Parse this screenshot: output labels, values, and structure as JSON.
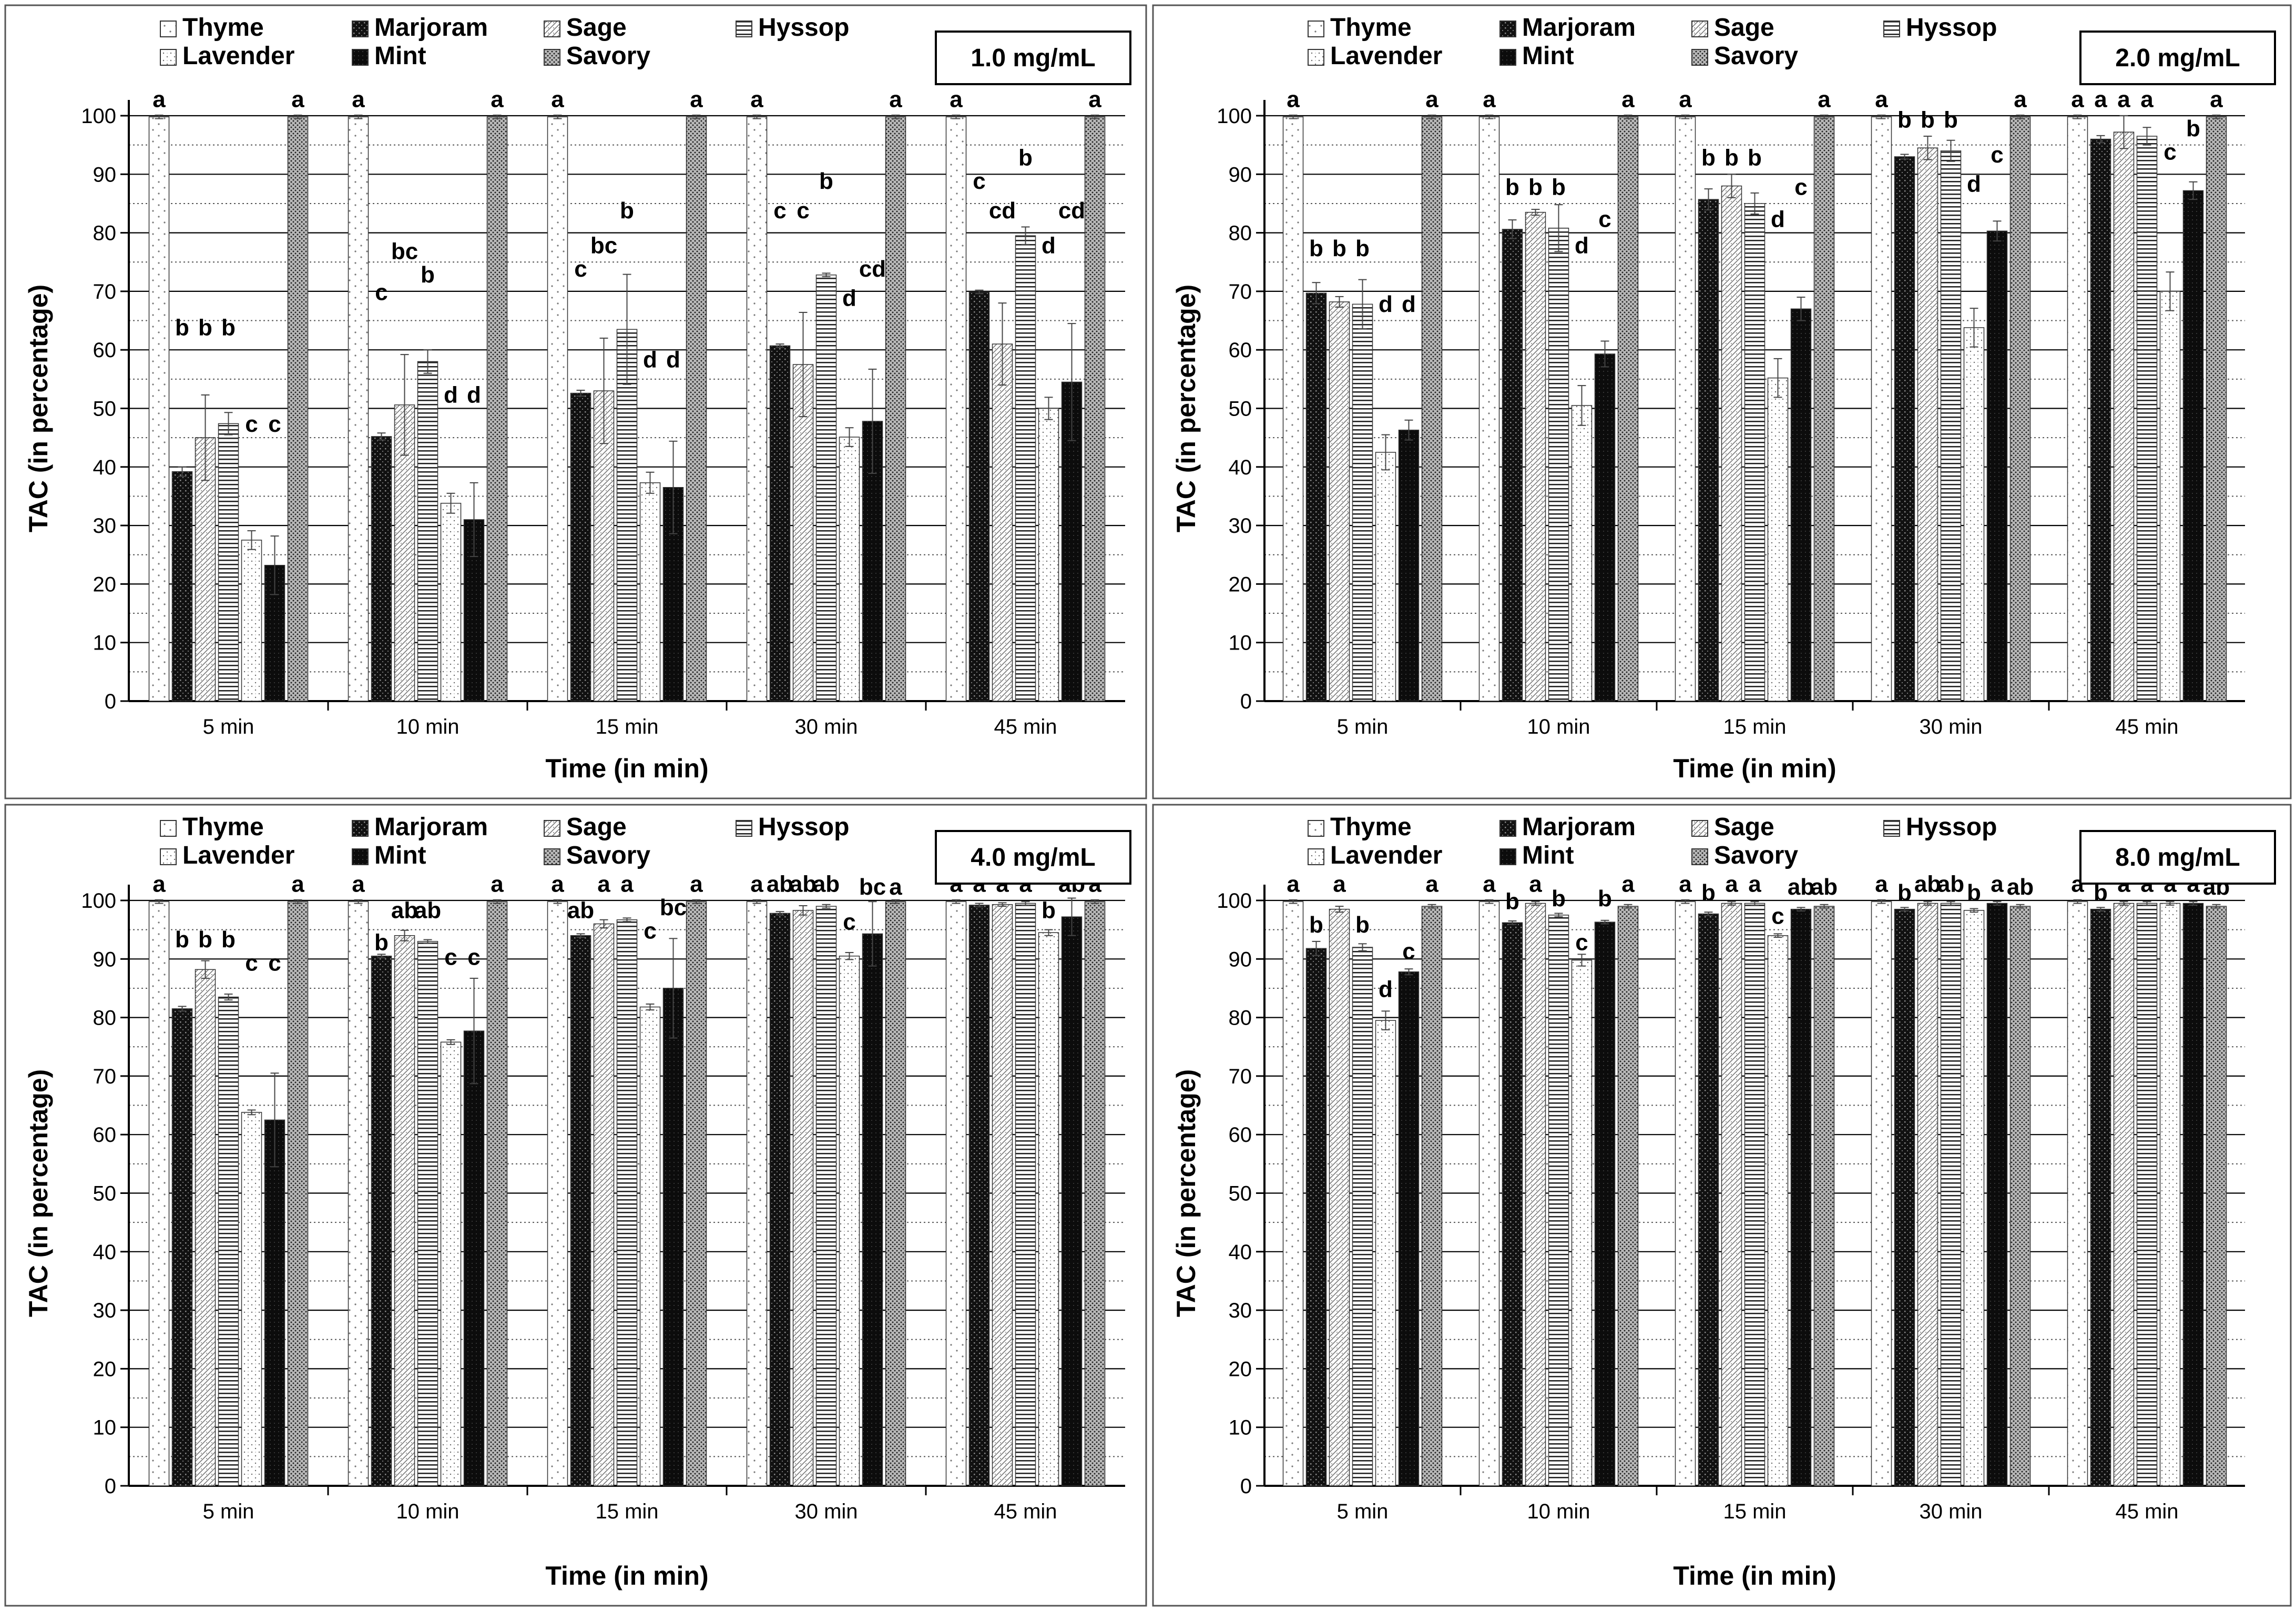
{
  "legend_items": [
    {
      "name": "Thyme",
      "pattern": "thyme"
    },
    {
      "name": "Marjoram",
      "pattern": "marjoram"
    },
    {
      "name": "Sage",
      "pattern": "sage"
    },
    {
      "name": "Hyssop",
      "pattern": "hyssop"
    },
    {
      "name": "Lavender",
      "pattern": "lavender"
    },
    {
      "name": "Mint",
      "pattern": "mint"
    },
    {
      "name": "Savory",
      "pattern": "savory"
    }
  ],
  "chart_data": [
    {
      "type": "bar",
      "title": "1.0 mg/mL",
      "xlabel": "Time (in min)",
      "ylabel": "TAC (in percentage)",
      "ylim": [
        0,
        100
      ],
      "yticks": [
        0,
        10,
        20,
        30,
        40,
        50,
        60,
        70,
        80,
        90,
        100
      ],
      "categories": [
        "5 min",
        "10 min",
        "15 min",
        "30 min",
        "45 min"
      ],
      "series": [
        {
          "name": "Thyme",
          "values": [
            99.8,
            99.8,
            99.8,
            99.8,
            99.8
          ],
          "errors": [
            0.3,
            0.3,
            0.3,
            0.3,
            0.3
          ],
          "labels": [
            "a",
            "a",
            "a",
            "a",
            "a"
          ]
        },
        {
          "name": "Marjoram",
          "values": [
            39.2,
            45.2,
            52.6,
            60.7,
            69.9
          ],
          "errors": [
            0.8,
            0.6,
            0.5,
            0.3,
            0.3
          ],
          "labels": [
            "b",
            "c",
            "c",
            "c",
            "c"
          ]
        },
        {
          "name": "Sage",
          "values": [
            45.0,
            50.6,
            53.0,
            57.5,
            61.0
          ],
          "errors": [
            7.3,
            8.6,
            9.0,
            8.9,
            7.0
          ],
          "labels": [
            "b",
            "bc",
            "bc",
            "c",
            "cd"
          ]
        },
        {
          "name": "Hyssop",
          "values": [
            47.4,
            58.0,
            63.5,
            72.8,
            79.5
          ],
          "errors": [
            1.9,
            2.0,
            9.4,
            0.3,
            1.5
          ],
          "labels": [
            "b",
            "b",
            "b",
            "b",
            "b"
          ]
        },
        {
          "name": "Lavender",
          "values": [
            27.5,
            33.8,
            37.3,
            45.1,
            50.0
          ],
          "errors": [
            1.6,
            1.7,
            1.8,
            1.6,
            1.9
          ],
          "labels": [
            "c",
            "d",
            "d",
            "d",
            "d"
          ]
        },
        {
          "name": "Mint",
          "values": [
            23.2,
            31.0,
            36.5,
            47.8,
            54.5
          ],
          "errors": [
            5.0,
            6.3,
            7.9,
            8.9,
            10.0
          ],
          "labels": [
            "c",
            "d",
            "d",
            "cd",
            "cd"
          ]
        },
        {
          "name": "Savory",
          "values": [
            99.8,
            99.8,
            99.8,
            99.8,
            99.8
          ],
          "errors": [
            0.3,
            0.3,
            0.3,
            0.3,
            0.3
          ],
          "labels": [
            "a",
            "a",
            "a",
            "a",
            "a"
          ]
        }
      ],
      "label_y": {
        "Thyme": [
          101.5,
          101.5,
          101.5,
          101.5,
          101.5
        ],
        "Marjoram": [
          62.5,
          68.5,
          72.5,
          82.5,
          87.5
        ],
        "Sage": [
          62.5,
          75.5,
          76.5,
          82.5,
          82.5
        ],
        "Hyssop": [
          62.5,
          71.5,
          82.5,
          87.5,
          91.5
        ],
        "Lavender": [
          46.0,
          51.0,
          57.0,
          67.5,
          76.5
        ],
        "Mint": [
          46.0,
          51.0,
          57.0,
          72.5,
          82.5
        ],
        "Savory": [
          101.5,
          101.5,
          101.5,
          101.5,
          101.5
        ]
      }
    },
    {
      "type": "bar",
      "title": "2.0 mg/mL",
      "xlabel": "Time (in min)",
      "ylabel": "TAC (in percentage)",
      "ylim": [
        0,
        100
      ],
      "yticks": [
        0,
        10,
        20,
        30,
        40,
        50,
        60,
        70,
        80,
        90,
        100
      ],
      "categories": [
        "5 min",
        "10 min",
        "15 min",
        "30 min",
        "45 min"
      ],
      "series": [
        {
          "name": "Thyme",
          "values": [
            99.8,
            99.8,
            99.8,
            99.8,
            99.8
          ],
          "errors": [
            0.3,
            0.3,
            0.3,
            0.3,
            0.3
          ],
          "labels": [
            "a",
            "a",
            "a",
            "a",
            "a"
          ]
        },
        {
          "name": "Marjoram",
          "values": [
            69.7,
            80.6,
            85.7,
            93.0,
            96.0
          ],
          "errors": [
            1.8,
            1.6,
            1.8,
            0.4,
            0.6
          ],
          "labels": [
            "b",
            "b",
            "b",
            "b",
            "a"
          ]
        },
        {
          "name": "Sage",
          "values": [
            68.2,
            83.5,
            88.0,
            94.5,
            97.2
          ],
          "errors": [
            0.9,
            0.5,
            2.0,
            2.0,
            2.8
          ],
          "labels": [
            "b",
            "b",
            "b",
            "b",
            "a"
          ]
        },
        {
          "name": "Hyssop",
          "values": [
            67.8,
            80.8,
            85.0,
            94.0,
            96.5
          ],
          "errors": [
            4.2,
            4.0,
            1.8,
            1.8,
            1.5
          ],
          "labels": [
            "b",
            "b",
            "b",
            "b",
            "a"
          ]
        },
        {
          "name": "Lavender",
          "values": [
            42.5,
            50.5,
            55.2,
            63.8,
            70.0
          ],
          "errors": [
            3.0,
            3.4,
            3.3,
            3.3,
            3.3
          ],
          "labels": [
            "d",
            "d",
            "d",
            "d",
            "c"
          ]
        },
        {
          "name": "Mint",
          "values": [
            46.3,
            59.3,
            67.0,
            80.3,
            87.2
          ],
          "errors": [
            1.7,
            2.2,
            2.0,
            1.7,
            1.5
          ],
          "labels": [
            "d",
            "c",
            "c",
            "c",
            "b"
          ]
        },
        {
          "name": "Savory",
          "values": [
            99.8,
            99.8,
            99.8,
            99.8,
            99.8
          ],
          "errors": [
            0.3,
            0.3,
            0.3,
            0.3,
            0.3
          ],
          "labels": [
            "a",
            "a",
            "a",
            "a",
            "a"
          ]
        }
      ],
      "label_y": {
        "Thyme": [
          101.5,
          101.5,
          101.5,
          101.5,
          101.5
        ],
        "Marjoram": [
          76.0,
          86.5,
          91.5,
          98.0,
          101.5
        ],
        "Sage": [
          76.0,
          86.5,
          91.5,
          98.0,
          101.5
        ],
        "Hyssop": [
          76.0,
          86.5,
          91.5,
          98.0,
          101.5
        ],
        "Lavender": [
          66.5,
          76.5,
          81.0,
          87.0,
          92.5
        ],
        "Mint": [
          66.5,
          81.0,
          86.5,
          92.0,
          96.5
        ],
        "Savory": [
          101.5,
          101.5,
          101.5,
          101.5,
          101.5
        ]
      }
    },
    {
      "type": "bar",
      "title": "4.0 mg/mL",
      "xlabel": "Time (in min)",
      "ylabel": "TAC (in percentage)",
      "ylim": [
        0,
        100
      ],
      "yticks": [
        0,
        10,
        20,
        30,
        40,
        50,
        60,
        70,
        80,
        90,
        100
      ],
      "categories": [
        "5 min",
        "10 min",
        "15 min",
        "30 min",
        "45 min"
      ],
      "series": [
        {
          "name": "Thyme",
          "values": [
            99.8,
            99.8,
            99.8,
            99.8,
            99.8
          ],
          "errors": [
            0.3,
            0.3,
            0.3,
            0.3,
            0.3
          ],
          "labels": [
            "a",
            "a",
            "a",
            "a",
            "a"
          ]
        },
        {
          "name": "Marjoram",
          "values": [
            81.5,
            90.5,
            94.0,
            97.8,
            99.2
          ],
          "errors": [
            0.4,
            0.3,
            0.3,
            0.3,
            0.3
          ],
          "labels": [
            "b",
            "b",
            "ab",
            "ab",
            "a"
          ]
        },
        {
          "name": "Sage",
          "values": [
            88.2,
            94.0,
            96.0,
            98.3,
            99.3
          ],
          "errors": [
            1.5,
            0.9,
            0.7,
            0.8,
            0.3
          ],
          "labels": [
            "b",
            "ab",
            "a",
            "ab",
            "a"
          ]
        },
        {
          "name": "Hyssop",
          "values": [
            83.5,
            93.0,
            96.7,
            99.0,
            99.5
          ],
          "errors": [
            0.5,
            0.3,
            0.3,
            0.3,
            0.3
          ],
          "labels": [
            "b",
            "ab",
            "a",
            "ab",
            "a"
          ]
        },
        {
          "name": "Lavender",
          "values": [
            63.8,
            75.8,
            81.8,
            90.5,
            94.5
          ],
          "errors": [
            0.4,
            0.4,
            0.5,
            0.6,
            0.5
          ],
          "labels": [
            "c",
            "c",
            "c",
            "c",
            "b"
          ]
        },
        {
          "name": "Mint",
          "values": [
            62.5,
            77.7,
            85.0,
            94.3,
            97.2
          ],
          "errors": [
            8.0,
            9.0,
            8.5,
            5.5,
            3.2
          ],
          "labels": [
            "c",
            "c",
            "bc",
            "bc",
            "ab"
          ]
        },
        {
          "name": "Savory",
          "values": [
            99.8,
            99.8,
            99.8,
            99.8,
            99.8
          ],
          "errors": [
            0.3,
            0.3,
            0.3,
            0.3,
            0.3
          ],
          "labels": [
            "a",
            "a",
            "a",
            "a",
            "a"
          ]
        }
      ],
      "label_y": {
        "Thyme": [
          101.5,
          101.5,
          101.5,
          101.5,
          101.5
        ],
        "Marjoram": [
          92.0,
          91.5,
          97.0,
          101.5,
          101.5
        ],
        "Sage": [
          92.0,
          97.0,
          101.5,
          101.5,
          101.5
        ],
        "Hyssop": [
          92.0,
          97.0,
          101.5,
          101.5,
          101.5
        ],
        "Lavender": [
          88.0,
          89.0,
          93.5,
          95.0,
          97.0
        ],
        "Mint": [
          88.0,
          89.0,
          97.5,
          101.0,
          101.5
        ],
        "Savory": [
          101.5,
          101.5,
          101.5,
          101.0,
          101.5
        ]
      }
    },
    {
      "type": "bar",
      "title": "8.0 mg/mL",
      "xlabel": "Time (in min)",
      "ylabel": "TAC (in percentage)",
      "ylim": [
        0,
        100
      ],
      "yticks": [
        0,
        10,
        20,
        30,
        40,
        50,
        60,
        70,
        80,
        90,
        100
      ],
      "categories": [
        "5 min",
        "10 min",
        "15 min",
        "30 min",
        "45 min"
      ],
      "series": [
        {
          "name": "Thyme",
          "values": [
            99.8,
            99.8,
            99.8,
            99.8,
            99.8
          ],
          "errors": [
            0.3,
            0.3,
            0.3,
            0.3,
            0.3
          ],
          "labels": [
            "a",
            "a",
            "a",
            "a",
            "a"
          ]
        },
        {
          "name": "Marjoram",
          "values": [
            91.8,
            96.2,
            97.7,
            98.5,
            98.5
          ],
          "errors": [
            1.2,
            0.3,
            0.3,
            0.3,
            0.3
          ],
          "labels": [
            "b",
            "b",
            "b",
            "b",
            "b"
          ]
        },
        {
          "name": "Sage",
          "values": [
            98.5,
            99.5,
            99.5,
            99.5,
            99.5
          ],
          "errors": [
            0.5,
            0.3,
            0.3,
            0.3,
            0.3
          ],
          "labels": [
            "a",
            "a",
            "a",
            "ab",
            "a"
          ]
        },
        {
          "name": "Hyssop",
          "values": [
            92.0,
            97.5,
            99.5,
            99.5,
            99.5
          ],
          "errors": [
            0.6,
            0.3,
            0.3,
            0.3,
            0.3
          ],
          "labels": [
            "b",
            "b",
            "a",
            "ab",
            "a"
          ]
        },
        {
          "name": "Lavender",
          "values": [
            79.5,
            89.8,
            94.0,
            98.3,
            99.5
          ],
          "errors": [
            1.6,
            1.0,
            0.3,
            0.3,
            0.3
          ],
          "labels": [
            "d",
            "c",
            "c",
            "b",
            "a"
          ]
        },
        {
          "name": "Mint",
          "values": [
            87.8,
            96.3,
            98.5,
            99.5,
            99.5
          ],
          "errors": [
            0.5,
            0.3,
            0.3,
            0.3,
            0.3
          ],
          "labels": [
            "c",
            "b",
            "ab",
            "a",
            "a"
          ]
        },
        {
          "name": "Savory",
          "values": [
            99.0,
            99.0,
            99.0,
            99.0,
            99.0
          ],
          "errors": [
            0.3,
            0.3,
            0.3,
            0.3,
            0.3
          ],
          "labels": [
            "a",
            "a",
            "ab",
            "ab",
            "ab"
          ]
        }
      ],
      "label_y": {
        "Thyme": [
          101.5,
          101.5,
          101.5,
          101.5,
          101.5
        ],
        "Marjoram": [
          94.5,
          98.5,
          100.0,
          100.0,
          100.0
        ],
        "Sage": [
          101.5,
          101.5,
          101.5,
          101.5,
          101.5
        ],
        "Hyssop": [
          94.5,
          99.0,
          101.5,
          101.5,
          101.5
        ],
        "Lavender": [
          83.5,
          91.5,
          96.0,
          100.0,
          101.5
        ],
        "Mint": [
          90.0,
          99.0,
          101.0,
          101.5,
          101.5
        ],
        "Savory": [
          101.5,
          101.5,
          101.0,
          101.0,
          101.0
        ]
      }
    }
  ]
}
